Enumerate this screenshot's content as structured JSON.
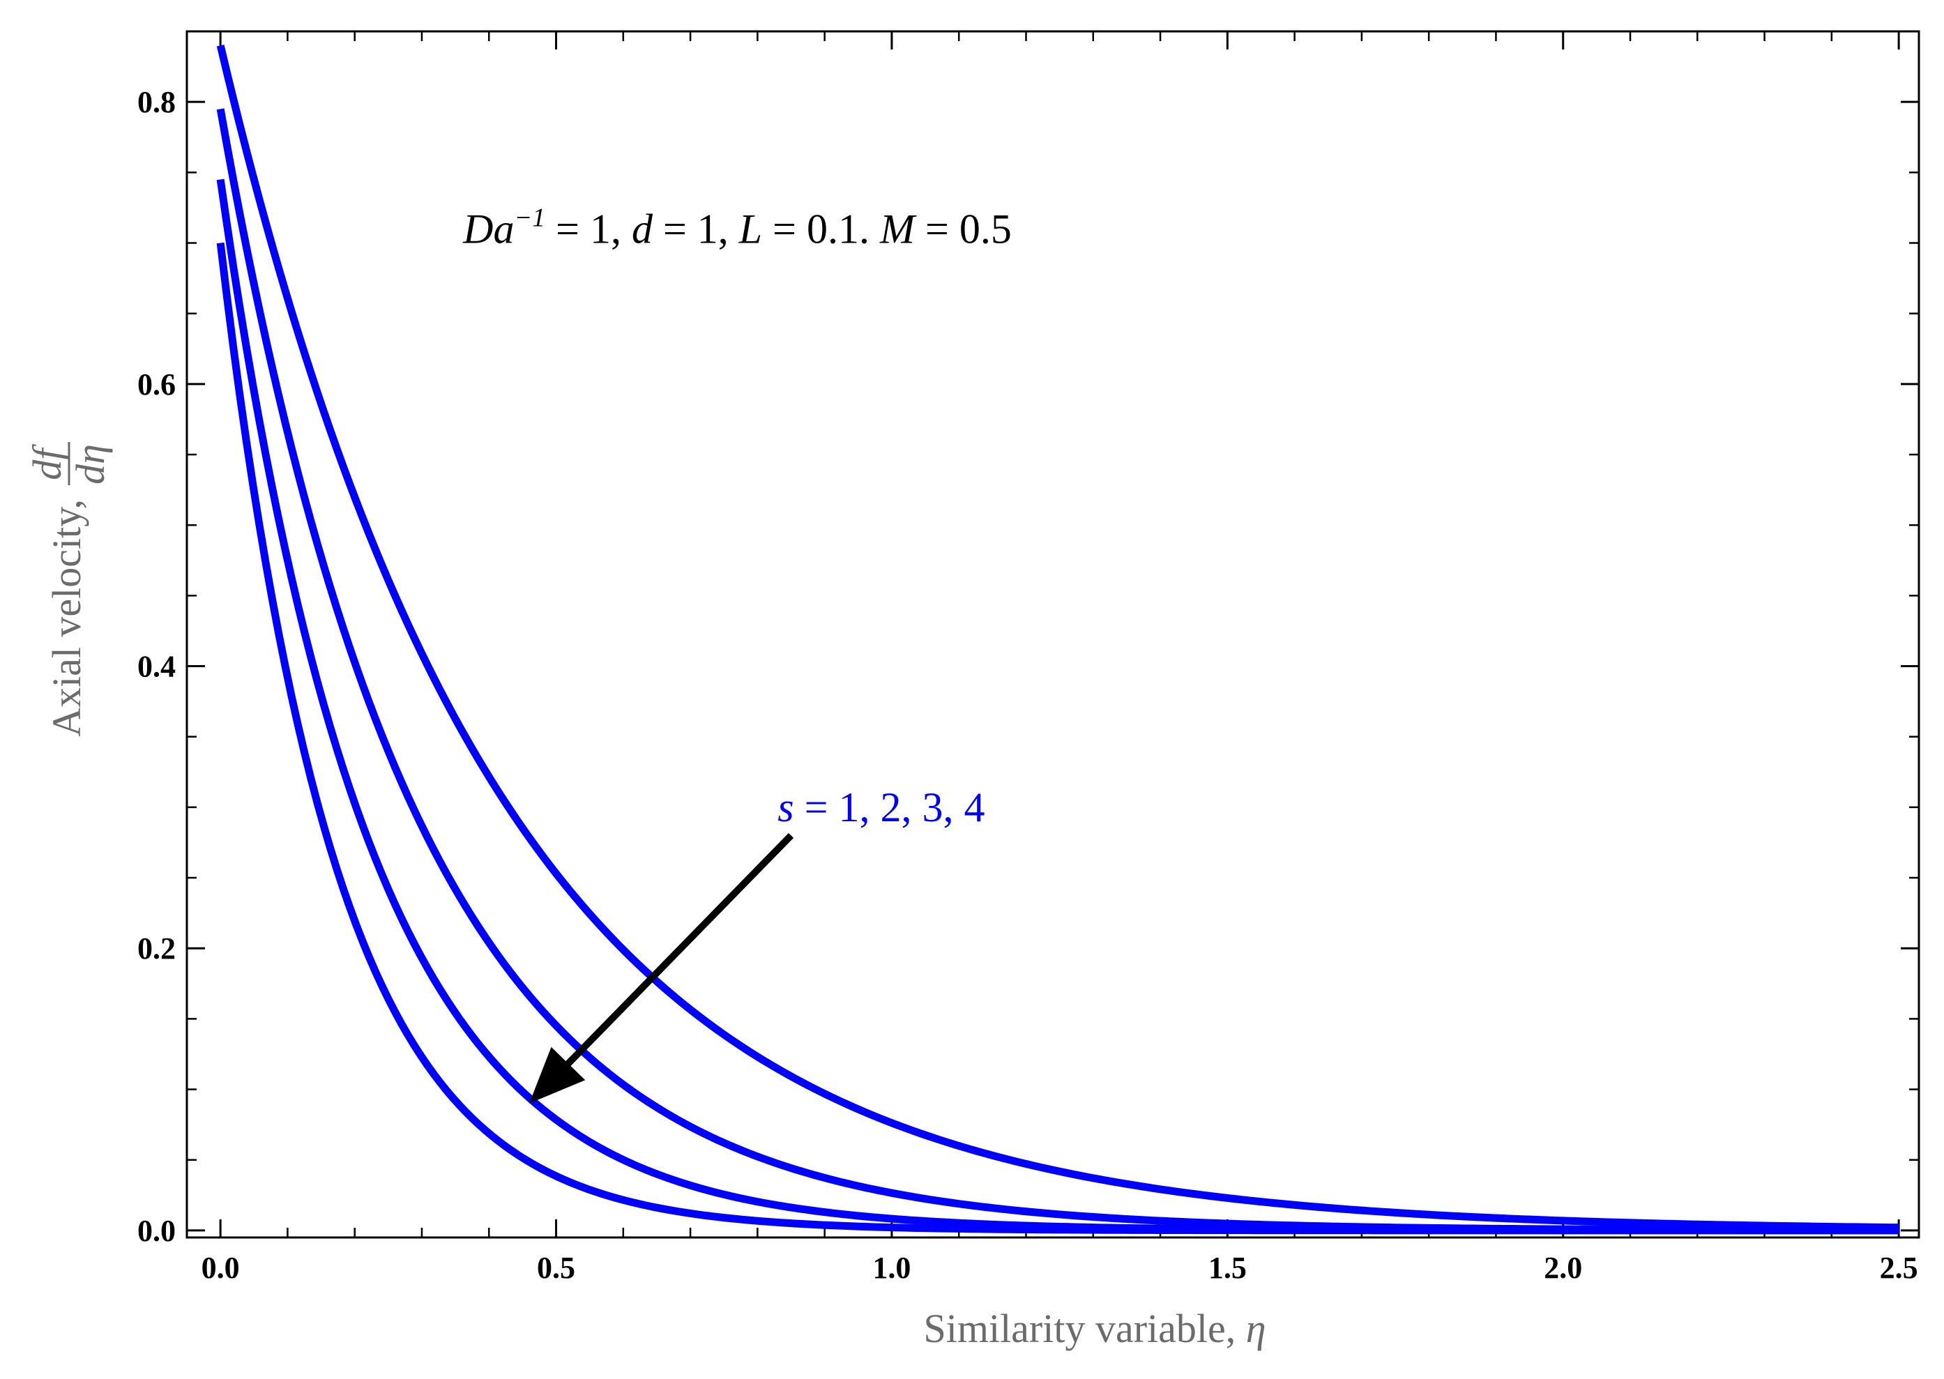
{
  "chart_data": {
    "type": "line",
    "title": "",
    "xlabel": {
      "text": "Similarity variable, ",
      "symbol": "η"
    },
    "ylabel": {
      "text": "Axial velocity, ",
      "numerator": "df",
      "denominator": "dη"
    },
    "xlim": [
      -0.05,
      2.53
    ],
    "ylim": [
      -0.005,
      0.85
    ],
    "xticks": [
      0.0,
      0.5,
      1.0,
      1.5,
      2.0,
      2.5
    ],
    "xtick_labels": [
      "0.0",
      "0.5",
      "1.0",
      "1.5",
      "2.0",
      "2.5"
    ],
    "yticks": [
      0.0,
      0.2,
      0.4,
      0.6,
      0.8
    ],
    "ytick_labels": [
      "0.0",
      "0.2",
      "0.4",
      "0.6",
      "0.8"
    ],
    "x_minor_step": 0.1,
    "y_minor_step": 0.05,
    "grid": false,
    "line_color": "#0000ff",
    "arrow_color": "#000000",
    "series": [
      {
        "s": 1,
        "y0": 0.84,
        "decay": 2.4
      },
      {
        "s": 2,
        "y0": 0.795,
        "decay": 3.4
      },
      {
        "s": 3,
        "y0": 0.745,
        "decay": 4.5
      },
      {
        "s": 4,
        "y0": 0.7,
        "decay": 5.8
      }
    ],
    "parameter_annotation": {
      "text": "Da⁻¹ = 1,  d = 1, L = 0.1. M = 0.5",
      "pieces": [
        "Da",
        "−1",
        " = 1,  ",
        "d",
        " = 1, ",
        "L",
        " = 0.1. ",
        "M",
        " = 0.5"
      ],
      "x": 0.77,
      "y": 0.7
    },
    "series_annotation": {
      "text": "s = 1, 2, 3, 4",
      "symbol": "s",
      "rest": " = 1, 2, 3, 4",
      "x": 0.83,
      "y": 0.29,
      "color": "#0000ff"
    },
    "arrow": {
      "from": [
        0.85,
        0.28
      ],
      "to": [
        0.46,
        0.09
      ]
    }
  }
}
